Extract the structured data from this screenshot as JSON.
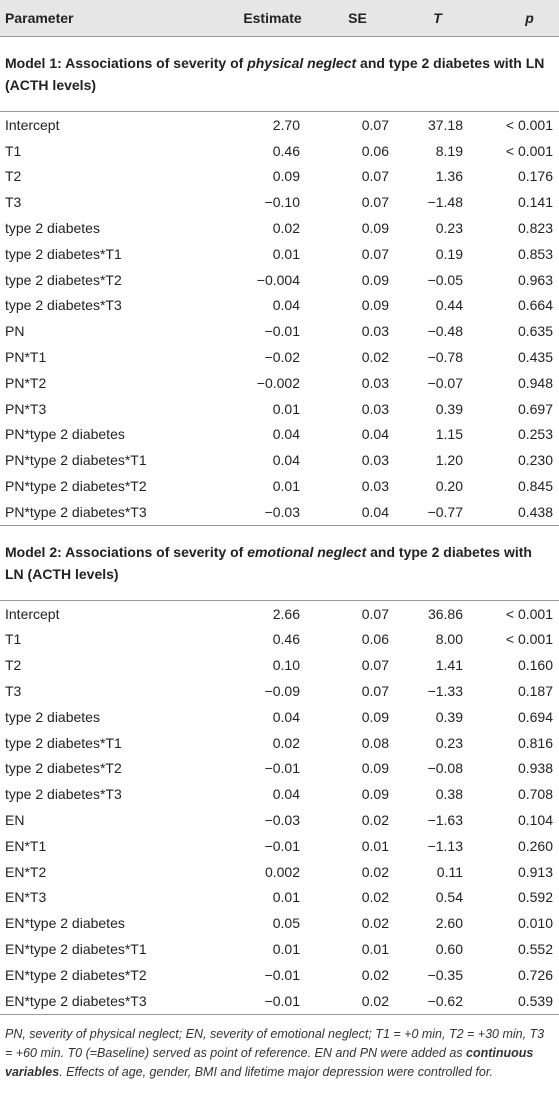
{
  "header": [
    "Parameter",
    "Estimate",
    "SE",
    "T",
    "p"
  ],
  "models": [
    {
      "title_parts": [
        "Model 1: Associations of severity of ",
        "physical neglect",
        " and type 2 diabetes with LN (ACTH levels)"
      ],
      "rows": [
        [
          "Intercept",
          "2.70",
          "0.07",
          "37.18",
          "< 0.001"
        ],
        [
          "T1",
          "0.46",
          "0.06",
          "8.19",
          "< 0.001"
        ],
        [
          "T2",
          "0.09",
          "0.07",
          "1.36",
          "0.176"
        ],
        [
          "T3",
          "−0.10",
          "0.07",
          "−1.48",
          "0.141"
        ],
        [
          "type 2 diabetes",
          "0.02",
          "0.09",
          "0.23",
          "0.823"
        ],
        [
          "type 2 diabetes*T1",
          "0.01",
          "0.07",
          "0.19",
          "0.853"
        ],
        [
          "type 2 diabetes*T2",
          "−0.004",
          "0.09",
          "−0.05",
          "0.963"
        ],
        [
          "type 2 diabetes*T3",
          "0.04",
          "0.09",
          "0.44",
          "0.664"
        ],
        [
          "PN",
          "−0.01",
          "0.03",
          "−0.48",
          "0.635"
        ],
        [
          "PN*T1",
          "−0.02",
          "0.02",
          "−0.78",
          "0.435"
        ],
        [
          "PN*T2",
          "−0.002",
          "0.03",
          "−0.07",
          "0.948"
        ],
        [
          "PN*T3",
          "0.01",
          "0.03",
          "0.39",
          "0.697"
        ],
        [
          "PN*type 2 diabetes",
          "0.04",
          "0.04",
          "1.15",
          "0.253"
        ],
        [
          "PN*type 2 diabetes*T1",
          "0.04",
          "0.03",
          "1.20",
          "0.230"
        ],
        [
          "PN*type 2 diabetes*T2",
          "0.01",
          "0.03",
          "0.20",
          "0.845"
        ],
        [
          "PN*type 2 diabetes*T3",
          "−0.03",
          "0.04",
          "−0.77",
          "0.438"
        ]
      ]
    },
    {
      "title_parts": [
        "Model 2: Associations of severity of ",
        "emotional neglect",
        " and type 2 diabetes with LN (ACTH levels)"
      ],
      "rows": [
        [
          "Intercept",
          "2.66",
          "0.07",
          "36.86",
          "< 0.001"
        ],
        [
          "T1",
          "0.46",
          "0.06",
          "8.00",
          "< 0.001"
        ],
        [
          "T2",
          "0.10",
          "0.07",
          "1.41",
          "0.160"
        ],
        [
          "T3",
          "−0.09",
          "0.07",
          "−1.33",
          "0.187"
        ],
        [
          "type 2 diabetes",
          "0.04",
          "0.09",
          "0.39",
          "0.694"
        ],
        [
          "type 2 diabetes*T1",
          "0.02",
          "0.08",
          "0.23",
          "0.816"
        ],
        [
          "type 2 diabetes*T2",
          "−0.01",
          "0.09",
          "−0.08",
          "0.938"
        ],
        [
          "type 2 diabetes*T3",
          "0.04",
          "0.09",
          "0.38",
          "0.708"
        ],
        [
          "EN",
          "−0.03",
          "0.02",
          "−1.63",
          "0.104"
        ],
        [
          "EN*T1",
          "−0.01",
          "0.01",
          "−1.13",
          "0.260"
        ],
        [
          "EN*T2",
          "0.002",
          "0.02",
          "0.11",
          "0.913"
        ],
        [
          "EN*T3",
          "0.01",
          "0.02",
          "0.54",
          "0.592"
        ],
        [
          "EN*type 2 diabetes",
          "0.05",
          "0.02",
          "2.60",
          "0.010"
        ],
        [
          "EN*type 2 diabetes*T1",
          "0.01",
          "0.01",
          "0.60",
          "0.552"
        ],
        [
          "EN*type 2 diabetes*T2",
          "−0.01",
          "0.02",
          "−0.35",
          "0.726"
        ],
        [
          "EN*type 2 diabetes*T3",
          "−0.01",
          "0.02",
          "−0.62",
          "0.539"
        ]
      ]
    }
  ],
  "footnote_parts": [
    "PN, severity of physical neglect; EN, severity of emotional neglect; T1 = +0 min, T2 = +30 min, T3 = +60 min. T0 (=Baseline) served as point of reference. EN and PN were added as ",
    "continuous variables",
    ". Effects of age, gender, BMI and lifetime major depression were controlled for."
  ]
}
